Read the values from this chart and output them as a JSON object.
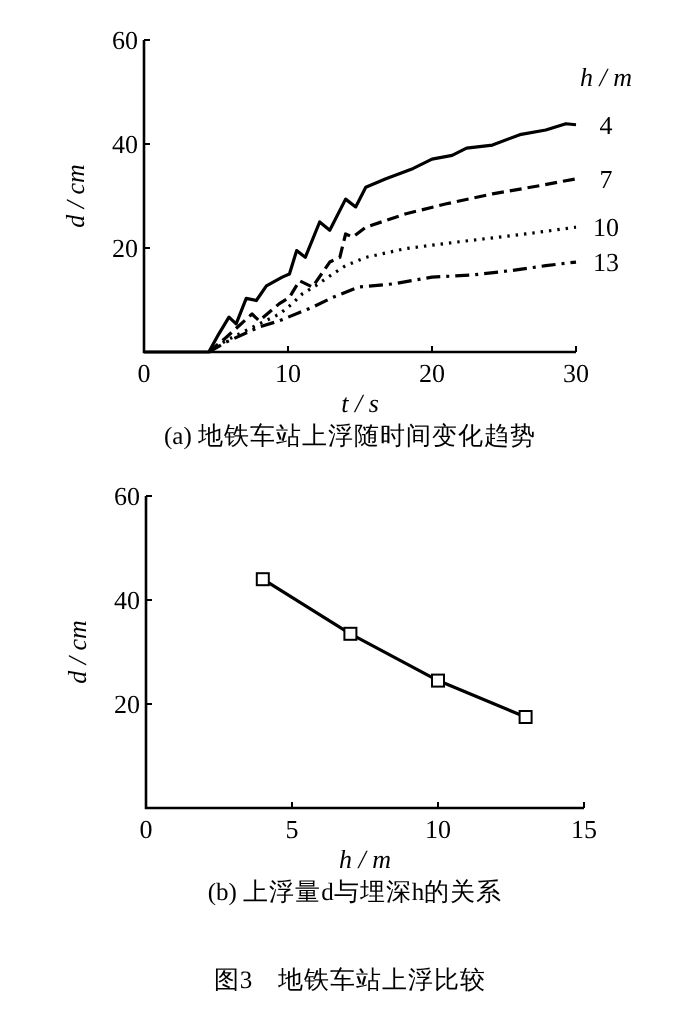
{
  "chart_data": [
    {
      "type": "line",
      "title": "(a) 地铁车站上浮随时间变化趋势",
      "xlabel": "t / s",
      "ylabel": "d / cm",
      "legend_title": "h / m",
      "xlim": [
        0,
        30
      ],
      "ylim": [
        0,
        60
      ],
      "xticks": [
        0,
        10,
        20,
        30
      ],
      "yticks": [
        {
          "value": 0,
          "label": null
        },
        20,
        40,
        60
      ],
      "marker": "none",
      "grid": false,
      "legend": "right",
      "series": [
        {
          "name": "4",
          "color": "#000000",
          "line_style": "solid",
          "x": [
            0,
            4.5,
            5.2,
            5.9,
            6.4,
            7.1,
            7.8,
            8.5,
            9.6,
            10.1,
            10.6,
            11.2,
            12.2,
            12.9,
            14.0,
            14.7,
            15.4,
            16.8,
            18.7,
            20.0,
            21.4,
            22.4,
            24.2,
            26.1,
            27.9,
            29.3,
            30
          ],
          "values": [
            0,
            0,
            3.5,
            6.7,
            5.4,
            10.3,
            9.9,
            12.7,
            14.4,
            15,
            19.5,
            18.2,
            25,
            23.4,
            29.4,
            27.9,
            31.7,
            33.3,
            35.3,
            37.1,
            37.8,
            39.2,
            39.8,
            41.8,
            42.7,
            43.9,
            43.7
          ]
        },
        {
          "name": "7",
          "color": "#000000",
          "line_style": "dashed",
          "x": [
            4.5,
            5.7,
            7.5,
            8.0,
            9.4,
            10.1,
            10.8,
            11.7,
            12.9,
            13.6,
            14.0,
            14.5,
            15.4,
            18.2,
            21.0,
            24.2,
            27.5,
            30
          ],
          "values": [
            0,
            2.8,
            7.3,
            6,
            9.3,
            10.5,
            13.7,
            12.5,
            17.3,
            18.2,
            22.7,
            22.1,
            24,
            26.6,
            28.5,
            30.4,
            32,
            33.3
          ]
        },
        {
          "name": "10",
          "color": "#000000",
          "line_style": "dotted",
          "x": [
            4.5,
            5.7,
            8.0,
            9.4,
            10.3,
            11.0,
            11.9,
            13.1,
            14.0,
            15.4,
            18.2,
            21.9,
            26.5,
            30
          ],
          "values": [
            0,
            2.2,
            5.4,
            7.3,
            9.3,
            11.2,
            12.7,
            15,
            16.6,
            18.2,
            19.9,
            21.2,
            22.7,
            24
          ]
        },
        {
          "name": "13",
          "color": "#000000",
          "line_style": "dashdot",
          "x": [
            4.5,
            5.7,
            8.0,
            9.4,
            10.8,
            11.7,
            13.1,
            14.9,
            17.3,
            20.0,
            22.8,
            25.6,
            27.9,
            30
          ],
          "values": [
            0,
            1.9,
            4.8,
            6,
            7.6,
            8.6,
            10.5,
            12.5,
            13.1,
            14.4,
            14.8,
            15.7,
            16.6,
            17.3
          ]
        }
      ]
    },
    {
      "type": "line",
      "title": "(b) 上浮量d与埋深h的关系",
      "xlabel": "h / m",
      "ylabel": "d / cm",
      "xlim": [
        0,
        15
      ],
      "ylim": [
        0,
        60
      ],
      "xticks": [
        0,
        5,
        10,
        15
      ],
      "yticks": [
        {
          "value": 0,
          "label": null
        },
        20,
        40,
        60
      ],
      "marker": "square",
      "grid": false,
      "annotations": [
        "图3　地铁车站上浮比较"
      ],
      "series": [
        {
          "color": "#000000",
          "line_style": "solid",
          "x": [
            4,
            7,
            10,
            13
          ],
          "values": [
            44,
            33.5,
            24.5,
            17.5
          ]
        }
      ]
    }
  ]
}
